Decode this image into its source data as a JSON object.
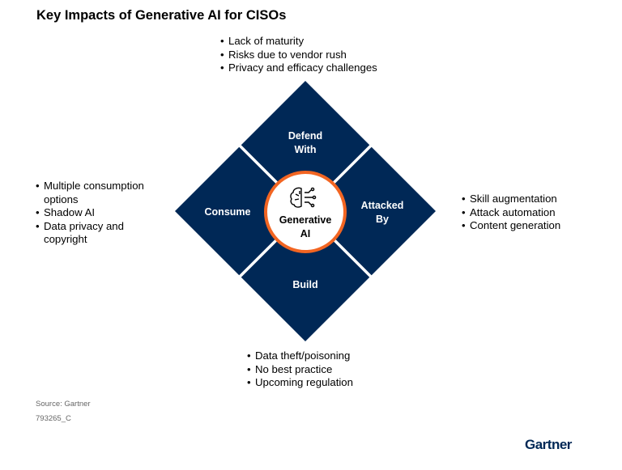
{
  "title": "Key Impacts of Generative AI for CISOs",
  "colors": {
    "quadrant": "#002856",
    "ring": "#f26522",
    "gap": "#ffffff"
  },
  "center": {
    "icon": "brain-circuit-icon",
    "line1": "Generative",
    "line2": "AI"
  },
  "quadrants": {
    "top": {
      "line1": "Defend",
      "line2": "With",
      "bullets": [
        "Lack of maturity",
        "Risks due to vendor rush",
        "Privacy and efficacy challenges"
      ]
    },
    "left": {
      "line1": "Consume",
      "bullets": [
        "Multiple consumption options",
        "Shadow AI",
        "Data privacy and copyright"
      ]
    },
    "right": {
      "line1": "Attacked",
      "line2": "By",
      "bullets": [
        "Skill augmentation",
        "Attack automation",
        "Content generation"
      ]
    },
    "bottom": {
      "line1": "Build",
      "bullets": [
        "Data theft/poisoning",
        "No best practice",
        "Upcoming regulation"
      ]
    }
  },
  "footer": {
    "source": "Source: Gartner",
    "id": "793265_C",
    "logo": "Gartner"
  }
}
